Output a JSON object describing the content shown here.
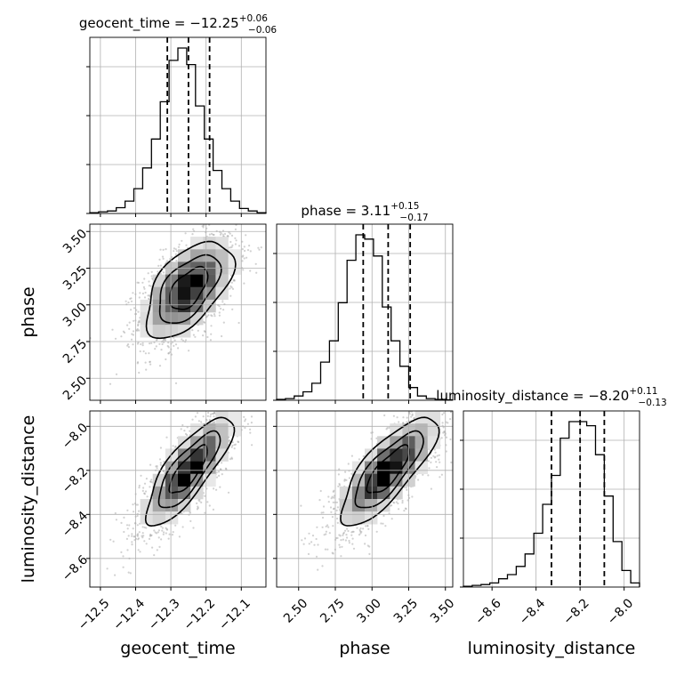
{
  "chart_data": {
    "type": "corner",
    "parameters": [
      {
        "name": "geocent_time",
        "label": "geocent_time",
        "median": -12.25,
        "plus": 0.06,
        "minus": 0.06,
        "title_main": "geocent_time = −12.25",
        "title_sup": "+0.06",
        "title_sub": "−0.06",
        "range": [
          -12.53,
          -12.03
        ],
        "ticks": [
          -12.5,
          -12.4,
          -12.3,
          -12.2,
          -12.1
        ],
        "tick_labels": [
          "−12.5",
          "−12.4",
          "−12.3",
          "−12.2",
          "−12.1"
        ]
      },
      {
        "name": "phase",
        "label": "phase",
        "median": 3.11,
        "plus": 0.15,
        "minus": 0.17,
        "title_main": "phase = 3.11",
        "title_sup": "+0.15",
        "title_sub": "−0.17",
        "range": [
          2.35,
          3.55
        ],
        "ticks": [
          2.5,
          2.75,
          3.0,
          3.25,
          3.5
        ],
        "tick_labels": [
          "2.50",
          "2.75",
          "3.00",
          "3.25",
          "3.50"
        ]
      },
      {
        "name": "luminosity_distance",
        "label": "luminosity_distance",
        "median": -8.2,
        "plus": 0.11,
        "minus": 0.13,
        "title_main": "luminosity_distance = −8.20",
        "title_sup": "+0.11",
        "title_sub": "−0.13",
        "range": [
          -8.73,
          -7.93
        ],
        "ticks": [
          -8.6,
          -8.4,
          -8.2,
          -8.0
        ],
        "tick_labels": [
          "−8.6",
          "−8.4",
          "−8.2",
          "−8.0"
        ]
      }
    ],
    "histograms": {
      "geocent_time": [
        1,
        2,
        3,
        7,
        15,
        30,
        55,
        90,
        135,
        185,
        200,
        180,
        130,
        90,
        52,
        30,
        15,
        6,
        3,
        1
      ],
      "phase": [
        1,
        2,
        5,
        10,
        20,
        45,
        70,
        115,
        165,
        195,
        190,
        170,
        110,
        70,
        40,
        15,
        5,
        2,
        1,
        0.5
      ],
      "luminosity_distance": [
        1,
        2,
        3,
        5,
        10,
        15,
        25,
        40,
        65,
        100,
        135,
        180,
        200,
        200,
        195,
        160,
        110,
        55,
        20,
        5
      ]
    },
    "grid": true,
    "contours": "2D density contours with grayscale 2D histograms and scatter points"
  }
}
